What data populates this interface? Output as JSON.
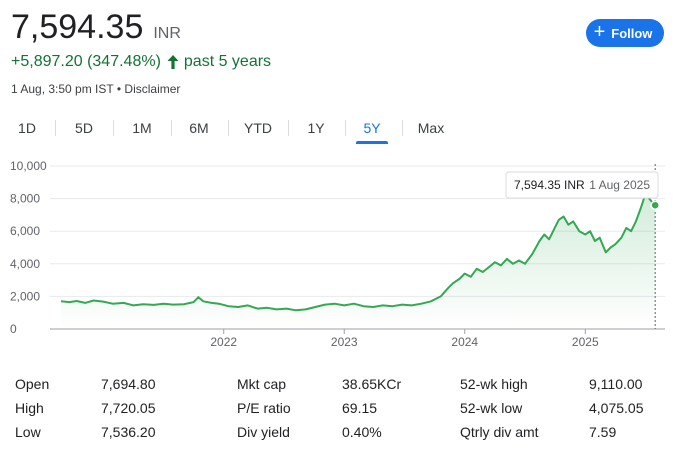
{
  "quote": {
    "price": "7,594.35",
    "currency": "INR",
    "change": "+5,897.20 (347.48%)",
    "period": "past 5 years",
    "timestamp": "1 Aug, 3:50 pm IST",
    "separator": "•",
    "disclaimer": "Disclaimer",
    "up_color": "#137333"
  },
  "follow": {
    "label": "Follow",
    "icon": "plus-icon"
  },
  "tabs": [
    {
      "label": "1D"
    },
    {
      "label": "5D"
    },
    {
      "label": "1M"
    },
    {
      "label": "6M"
    },
    {
      "label": "YTD"
    },
    {
      "label": "1Y"
    },
    {
      "label": "5Y",
      "active": true
    },
    {
      "label": "Max"
    }
  ],
  "chart_data": {
    "type": "area",
    "line_color": "#34a853",
    "y_ticks": [
      "10,000",
      "8,000",
      "6,000",
      "4,000",
      "2,000",
      "0"
    ],
    "x_ticks": [
      "2022",
      "2023",
      "2024",
      "2025"
    ],
    "ylim": [
      0,
      10000
    ],
    "x_range": [
      "2020-08",
      "2025-08"
    ],
    "grid": true,
    "tooltip": {
      "value": "7,594.35 INR",
      "date": "1 Aug 2025"
    },
    "series": [
      {
        "values": [
          [
            2020.65,
            1700
          ],
          [
            2020.72,
            1650
          ],
          [
            2020.78,
            1720
          ],
          [
            2020.85,
            1600
          ],
          [
            2020.92,
            1750
          ],
          [
            2021.0,
            1680
          ],
          [
            2021.08,
            1550
          ],
          [
            2021.17,
            1600
          ],
          [
            2021.25,
            1450
          ],
          [
            2021.33,
            1520
          ],
          [
            2021.42,
            1480
          ],
          [
            2021.5,
            1550
          ],
          [
            2021.58,
            1500
          ],
          [
            2021.67,
            1520
          ],
          [
            2021.75,
            1650
          ],
          [
            2021.79,
            1950
          ],
          [
            2021.83,
            1700
          ],
          [
            2021.9,
            1600
          ],
          [
            2021.96,
            1550
          ],
          [
            2022.04,
            1400
          ],
          [
            2022.12,
            1350
          ],
          [
            2022.2,
            1450
          ],
          [
            2022.28,
            1250
          ],
          [
            2022.36,
            1300
          ],
          [
            2022.44,
            1200
          ],
          [
            2022.52,
            1250
          ],
          [
            2022.6,
            1150
          ],
          [
            2022.68,
            1200
          ],
          [
            2022.76,
            1350
          ],
          [
            2022.84,
            1500
          ],
          [
            2022.92,
            1550
          ],
          [
            2023.0,
            1450
          ],
          [
            2023.08,
            1550
          ],
          [
            2023.16,
            1400
          ],
          [
            2023.24,
            1350
          ],
          [
            2023.32,
            1450
          ],
          [
            2023.4,
            1400
          ],
          [
            2023.48,
            1500
          ],
          [
            2023.56,
            1450
          ],
          [
            2023.64,
            1550
          ],
          [
            2023.72,
            1700
          ],
          [
            2023.8,
            2000
          ],
          [
            2023.86,
            2500
          ],
          [
            2023.9,
            2800
          ],
          [
            2023.96,
            3100
          ],
          [
            2024.0,
            3400
          ],
          [
            2024.05,
            3200
          ],
          [
            2024.1,
            3700
          ],
          [
            2024.15,
            3500
          ],
          [
            2024.2,
            3800
          ],
          [
            2024.25,
            4100
          ],
          [
            2024.3,
            3900
          ],
          [
            2024.35,
            4300
          ],
          [
            2024.4,
            4000
          ],
          [
            2024.45,
            4200
          ],
          [
            2024.5,
            4000
          ],
          [
            2024.56,
            4600
          ],
          [
            2024.62,
            5400
          ],
          [
            2024.66,
            5800
          ],
          [
            2024.7,
            5500
          ],
          [
            2024.74,
            6100
          ],
          [
            2024.78,
            6700
          ],
          [
            2024.82,
            6900
          ],
          [
            2024.86,
            6400
          ],
          [
            2024.9,
            6600
          ],
          [
            2024.95,
            6000
          ],
          [
            2025.0,
            5800
          ],
          [
            2025.04,
            6000
          ],
          [
            2025.08,
            5400
          ],
          [
            2025.12,
            5600
          ],
          [
            2025.17,
            4700
          ],
          [
            2025.21,
            5000
          ],
          [
            2025.25,
            5200
          ],
          [
            2025.3,
            5600
          ],
          [
            2025.34,
            6200
          ],
          [
            2025.38,
            6000
          ],
          [
            2025.42,
            6600
          ],
          [
            2025.46,
            7400
          ],
          [
            2025.5,
            8300
          ],
          [
            2025.54,
            7900
          ],
          [
            2025.58,
            7594
          ]
        ]
      }
    ]
  },
  "stats": [
    {
      "label": "Open",
      "value": "7,694.80"
    },
    {
      "label": "High",
      "value": "7,720.05"
    },
    {
      "label": "Low",
      "value": "7,536.20"
    },
    {
      "label": "Mkt cap",
      "value": "38.65KCr"
    },
    {
      "label": "P/E ratio",
      "value": "69.15"
    },
    {
      "label": "Div yield",
      "value": "0.40%"
    },
    {
      "label": "52-wk high",
      "value": "9,110.00"
    },
    {
      "label": "52-wk low",
      "value": "4,075.05"
    },
    {
      "label": "Qtrly div amt",
      "value": "7.59"
    }
  ]
}
